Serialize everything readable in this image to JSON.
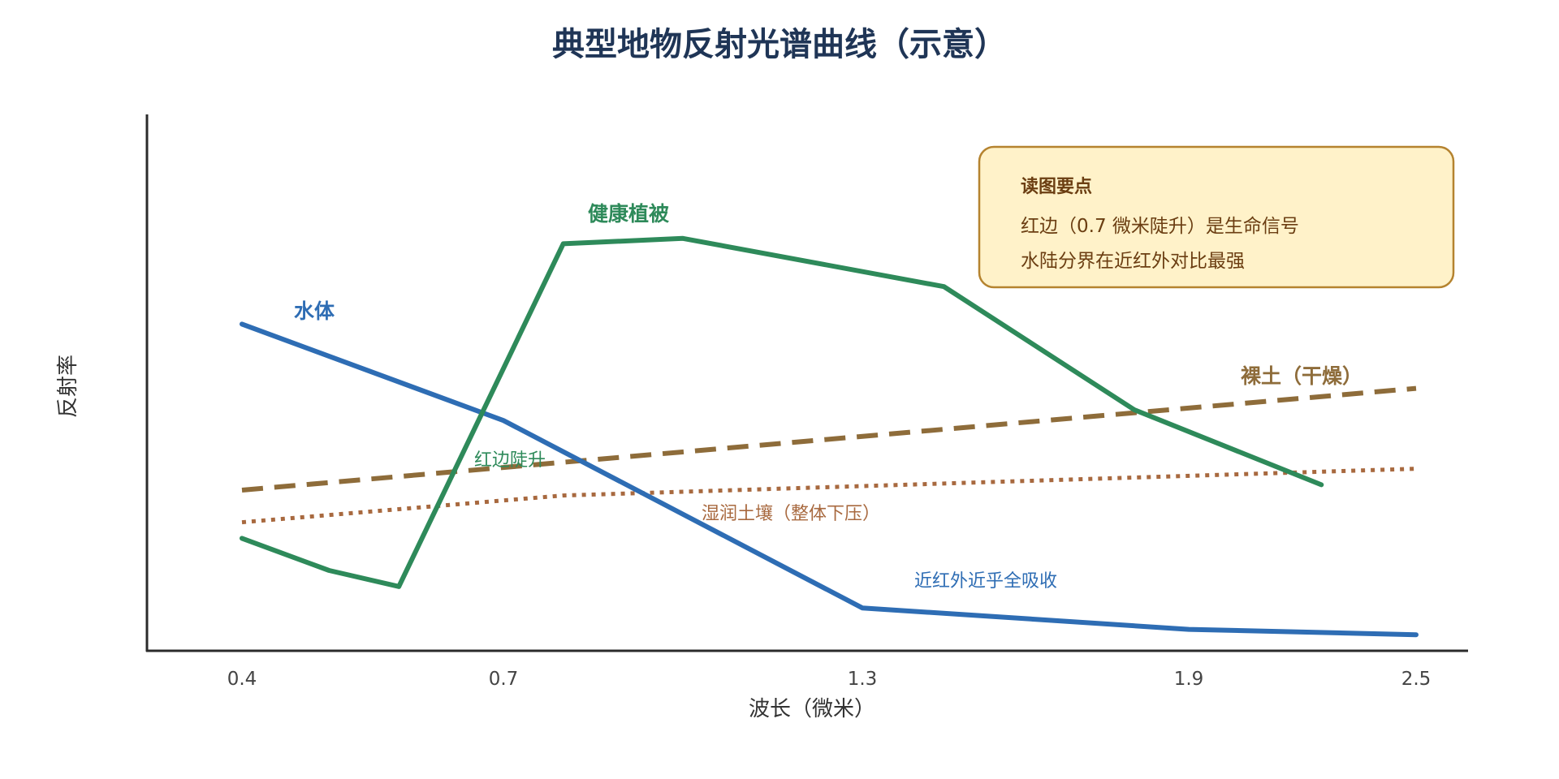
{
  "chart_data": {
    "type": "line",
    "title": "典型地物反射光谱曲线（示意）",
    "xlabel": "波长（微米）",
    "ylabel": "反射率",
    "x_ticks": [
      0.4,
      0.7,
      1.3,
      1.9,
      2.5
    ],
    "colors": {
      "water": "#2e6db4",
      "vegetation": "#2e8a5a",
      "dry_soil": "#8e6c3a",
      "wet_soil": "#a8693f",
      "axis": "#2b2b2b",
      "note_bg": "#fff2c9",
      "note_border": "#b5832f",
      "note_text": "#6b3e12"
    },
    "series": [
      {
        "key": "water",
        "name": "水体",
        "style": "solid",
        "points": [
          [
            0.4,
            0.61
          ],
          [
            0.7,
            0.43
          ],
          [
            1.3,
            0.08
          ],
          [
            1.9,
            0.04
          ],
          [
            2.5,
            0.03
          ]
        ]
      },
      {
        "key": "vegetation",
        "name": "健康植被",
        "style": "solid",
        "points": [
          [
            0.4,
            0.21
          ],
          [
            0.5,
            0.15
          ],
          [
            0.58,
            0.12
          ],
          [
            0.8,
            0.76
          ],
          [
            1.0,
            0.77
          ],
          [
            1.45,
            0.68
          ],
          [
            1.8,
            0.45
          ],
          [
            2.25,
            0.31
          ]
        ]
      },
      {
        "key": "dry_soil",
        "name": "裸土（干燥）",
        "style": "dashed",
        "points": [
          [
            0.4,
            0.3
          ],
          [
            2.5,
            0.49
          ]
        ]
      },
      {
        "key": "wet_soil",
        "name": "湿润土壤（整体下压）",
        "style": "dotted",
        "points": [
          [
            0.4,
            0.24
          ],
          [
            0.8,
            0.29
          ],
          [
            2.5,
            0.34
          ]
        ]
      }
    ],
    "annotations": [
      {
        "key": "red_edge",
        "text": "红边陡升"
      },
      {
        "key": "nir_absorb",
        "text": "近红外近乎全吸收"
      }
    ],
    "note": {
      "title": "读图要点",
      "lines": [
        "红边（0.7 微米陡升）是生命信号",
        "水陆分界在近红外对比最强"
      ]
    },
    "grid": false,
    "legend": "none"
  }
}
